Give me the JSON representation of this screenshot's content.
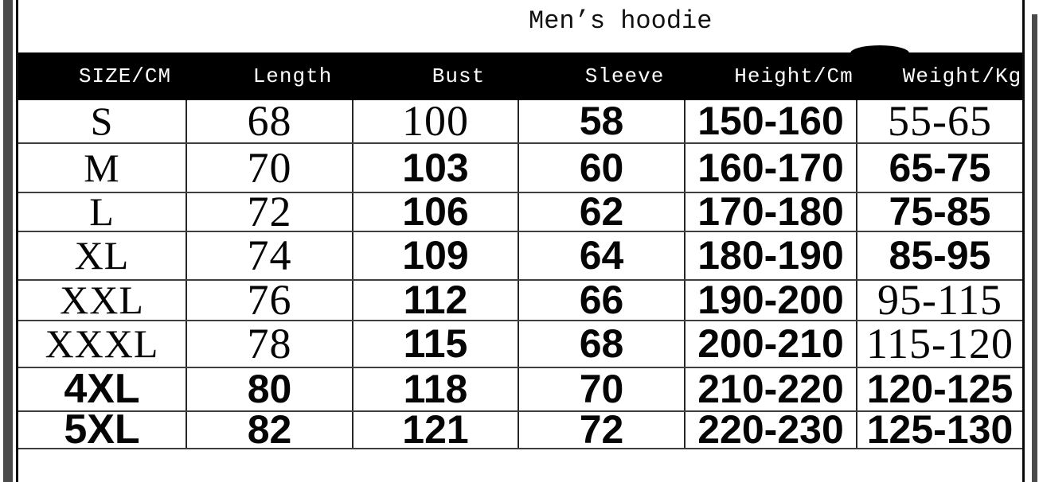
{
  "title": "Men’s hoodie",
  "chart_data": {
    "type": "table",
    "title": "Men’s hoodie",
    "columns": [
      "SIZE/CM",
      "Length",
      "Bust",
      "Sleeve",
      "Height/Cm",
      "Weight/Kg"
    ],
    "rows": [
      [
        "S",
        "68",
        "100",
        "58",
        "150-160",
        "55-65"
      ],
      [
        "M",
        "70",
        "103",
        "60",
        "160-170",
        "65-75"
      ],
      [
        "L",
        "72",
        "106",
        "62",
        "170-180",
        "75-85"
      ],
      [
        "XL",
        "74",
        "109",
        "64",
        "180-190",
        "85-95"
      ],
      [
        "XXL",
        "76",
        "112",
        "66",
        "190-200",
        "95-115"
      ],
      [
        "XXXL",
        "78",
        "115",
        "68",
        "200-210",
        "115-120"
      ],
      [
        "4XL",
        "80",
        "118",
        "70",
        "210-220",
        "120-125"
      ],
      [
        "5XL",
        "82",
        "121",
        "72",
        "220-230",
        "125-130"
      ]
    ]
  },
  "colors": {
    "header_background": "#000000",
    "header_text": "#ffffff",
    "body_text": "#050505",
    "grid_line": "#3f3f3f",
    "edge_bar": "#4b4b4b"
  }
}
